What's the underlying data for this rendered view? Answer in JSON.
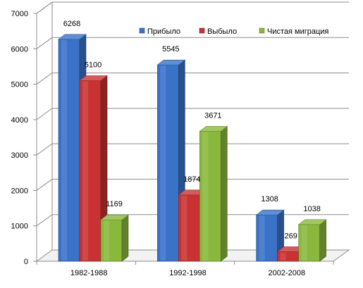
{
  "chart_data": {
    "type": "bar",
    "categories": [
      "1982-1988",
      "1992-1998",
      "2002-2008"
    ],
    "series": [
      {
        "name": "Прибыло",
        "values": [
          6268,
          5545,
          1308
        ],
        "color": "#3a72c8"
      },
      {
        "name": "Выбыло",
        "values": [
          5100,
          1874,
          269
        ],
        "color": "#c83232"
      },
      {
        "name": "Чистая миграция",
        "values": [
          1169,
          3671,
          1038
        ],
        "color": "#8ab83c"
      }
    ],
    "ylim": [
      0,
      7000
    ],
    "yticks": [
      "0",
      "1000",
      "2000",
      "3000",
      "4000",
      "5000",
      "6000",
      "7000"
    ],
    "data_labels": [
      [
        "6268",
        "5100",
        "1169"
      ],
      [
        "5545",
        "1874",
        "3671"
      ],
      [
        "1308",
        "269",
        "1038"
      ]
    ],
    "grid": true,
    "legend_position": "top-right",
    "style": "3d-column"
  }
}
